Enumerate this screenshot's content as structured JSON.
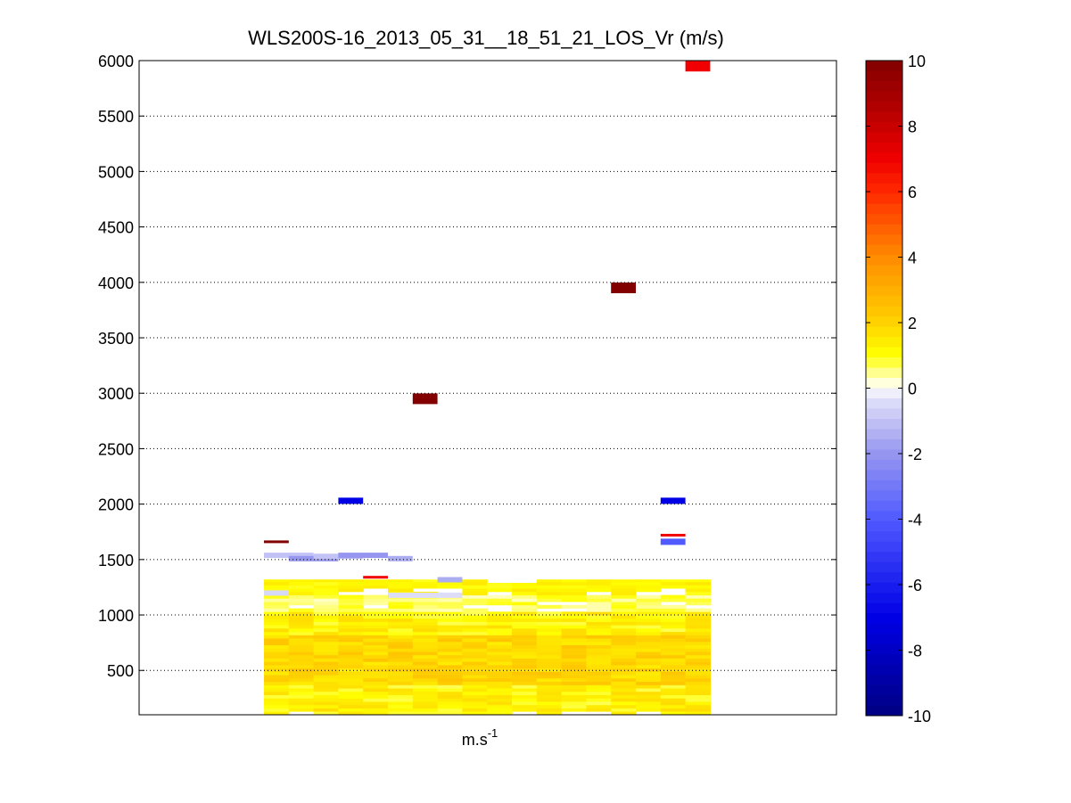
{
  "chart_data": {
    "type": "heatmap",
    "title": "WLS200S-16_2013_05_31__18_51_21_LOS_Vr (m/s)",
    "xlabel": "m.s-1",
    "xlabel_base": "m.s",
    "xlabel_sup": "-1",
    "ylabel": "",
    "ylim": [
      100,
      6000
    ],
    "yticks": [
      500,
      1000,
      1500,
      2000,
      2500,
      3000,
      3500,
      4000,
      4500,
      5000,
      5500,
      6000
    ],
    "ytick_labels": [
      "500",
      "1000",
      "1500",
      "2000",
      "2500",
      "3000",
      "3500",
      "4000",
      "4500",
      "5000",
      "5500",
      "6000"
    ],
    "grid": "y-dotted",
    "columns": 18,
    "colorbar": {
      "range": [
        -10,
        10
      ],
      "ticks": [
        10,
        8,
        6,
        4,
        2,
        0,
        -2,
        -4,
        -6,
        -8,
        -10
      ],
      "tick_labels": [
        "10",
        "8",
        "6",
        "4",
        "2",
        "0",
        "-2",
        "-4",
        "-6",
        "-8",
        "-10"
      ],
      "colormap": "blue-white-yellow-red"
    },
    "isolated_cells": [
      {
        "column": 0,
        "altitude": 1660,
        "value": 10
      },
      {
        "column": 3,
        "altitude": 2030,
        "value": -7
      },
      {
        "column": 4,
        "altitude": 1340,
        "value": 7
      },
      {
        "column": 6,
        "altitude": 2950,
        "value": 10
      },
      {
        "column": 14,
        "altitude": 3950,
        "value": 10
      },
      {
        "column": 16,
        "altitude": 2030,
        "value": -7
      },
      {
        "column": 16,
        "altitude": 1720,
        "value": 7
      },
      {
        "column": 16,
        "altitude": 1660,
        "value": -4
      },
      {
        "column": 17,
        "altitude": 5950,
        "value": 7
      }
    ],
    "faint_layer": [
      {
        "columns": [
          0,
          1
        ],
        "altitude": 1530,
        "value": -1
      },
      {
        "columns": [
          1,
          2
        ],
        "altitude": 1500,
        "value": -2
      },
      {
        "columns": [
          2,
          3
        ],
        "altitude": 1520,
        "value": -1
      },
      {
        "columns": [
          3,
          4
        ],
        "altitude": 1530,
        "value": -2
      },
      {
        "columns": [
          5,
          5
        ],
        "altitude": 1500,
        "value": -1.5
      },
      {
        "columns": [
          7,
          7
        ],
        "altitude": 1310,
        "value": -1.5
      },
      {
        "columns": [
          0,
          0
        ],
        "altitude": 1190,
        "value": -0.5
      },
      {
        "columns": [
          5,
          7
        ],
        "altitude": 1170,
        "value": -0.4
      }
    ],
    "boundary_layer": {
      "altitude_range": [
        100,
        1320
      ],
      "values_range": [
        0.5,
        2.5
      ],
      "description_values": "mostly 1 to 2.5 m/s"
    }
  }
}
